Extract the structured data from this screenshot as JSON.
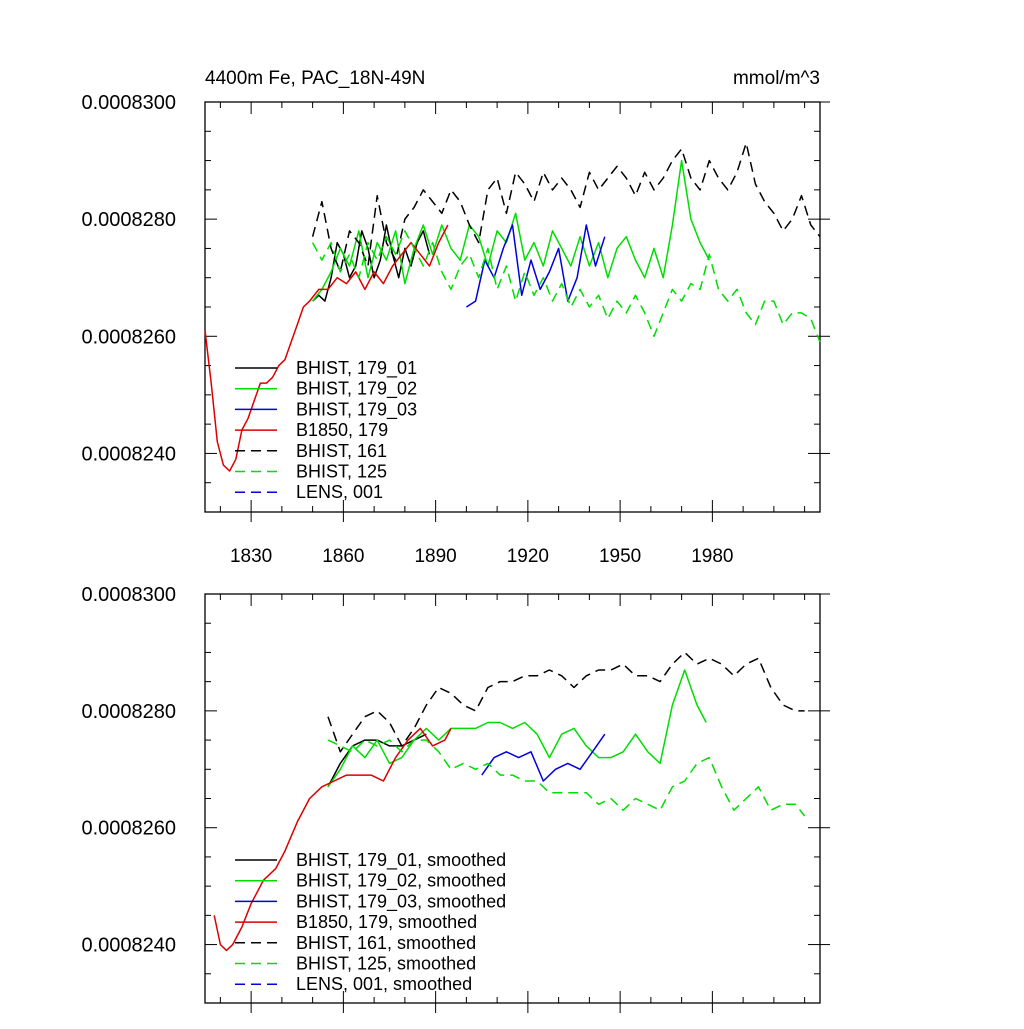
{
  "chart_data": [
    {
      "type": "line",
      "title": "4400m Fe, PAC_18N-49N",
      "units": "mmol/m^3",
      "xlabel": "",
      "ylabel": "",
      "xlim": [
        1815,
        2015
      ],
      "ylim": [
        0.000823,
        0.00083
      ],
      "x_ticks": [
        1830,
        1860,
        1890,
        1920,
        1950,
        1980
      ],
      "y_ticks": [
        "0.0008240",
        "0.0008260",
        "0.0008280",
        "0.0008300"
      ],
      "legend_position": "bottom-left",
      "series": [
        {
          "name": "BHIST, 179_01",
          "color": "#000000",
          "dash": "solid",
          "x": [
            1850,
            1852,
            1854,
            1856,
            1858,
            1860,
            1862,
            1864,
            1866,
            1868,
            1870,
            1872,
            1874,
            1876,
            1878,
            1880,
            1882,
            1884,
            1886,
            1888
          ],
          "y": [
            0.0008266,
            0.0008267,
            0.0008266,
            0.000827,
            0.0008276,
            0.0008274,
            0.000827,
            0.0008272,
            0.0008278,
            0.0008275,
            0.000827,
            0.0008273,
            0.0008279,
            0.0008274,
            0.000827,
            0.0008275,
            0.0008272,
            0.0008276,
            0.0008278,
            0.0008274
          ]
        },
        {
          "name": "BHIST, 179_02",
          "color": "#00dd00",
          "dash": "solid",
          "x": [
            1850,
            1853,
            1856,
            1859,
            1862,
            1865,
            1868,
            1871,
            1874,
            1877,
            1880,
            1883,
            1886,
            1889,
            1892,
            1895,
            1898,
            1901,
            1904,
            1907,
            1910,
            1913,
            1916,
            1919,
            1922,
            1925,
            1928,
            1931,
            1934,
            1937,
            1940,
            1943,
            1946,
            1949,
            1952,
            1955,
            1958,
            1961,
            1964,
            1967,
            1970,
            1973,
            1976,
            1979
          ],
          "y": [
            0.0008266,
            0.0008268,
            0.0008271,
            0.0008275,
            0.0008272,
            0.0008278,
            0.000827,
            0.0008276,
            0.0008273,
            0.0008278,
            0.0008269,
            0.0008275,
            0.0008279,
            0.0008274,
            0.0008279,
            0.0008275,
            0.0008273,
            0.0008279,
            0.0008277,
            0.0008272,
            0.0008278,
            0.0008276,
            0.0008281,
            0.0008273,
            0.0008276,
            0.0008272,
            0.0008278,
            0.0008275,
            0.0008272,
            0.0008277,
            0.0008272,
            0.0008276,
            0.000827,
            0.0008275,
            0.0008277,
            0.0008273,
            0.000827,
            0.0008275,
            0.000827,
            0.0008279,
            0.000829,
            0.000828,
            0.0008276,
            0.0008273
          ]
        },
        {
          "name": "BHIST, 179_03",
          "color": "#0000dd",
          "dash": "solid",
          "x": [
            1900,
            1903,
            1906,
            1909,
            1912,
            1915,
            1918,
            1921,
            1924,
            1927,
            1930,
            1933,
            1936,
            1939,
            1942,
            1945
          ],
          "y": [
            0.0008265,
            0.0008266,
            0.0008273,
            0.000827,
            0.0008275,
            0.0008279,
            0.0008267,
            0.0008273,
            0.0008268,
            0.0008271,
            0.0008275,
            0.0008266,
            0.000827,
            0.0008279,
            0.0008272,
            0.0008277
          ]
        },
        {
          "name": "B1850, 179",
          "color": "#dd0000",
          "dash": "solid",
          "x": [
            1815,
            1817,
            1819,
            1821,
            1823,
            1825,
            1827,
            1829,
            1831,
            1833,
            1835,
            1837,
            1839,
            1841,
            1843,
            1845,
            1847,
            1849,
            1852,
            1855,
            1858,
            1861,
            1864,
            1867,
            1870,
            1873,
            1876,
            1879,
            1882,
            1885,
            1888,
            1891,
            1894
          ],
          "y": [
            0.0008261,
            0.0008252,
            0.0008242,
            0.0008238,
            0.0008237,
            0.0008239,
            0.0008244,
            0.0008246,
            0.0008249,
            0.0008252,
            0.0008252,
            0.0008253,
            0.0008255,
            0.0008256,
            0.0008259,
            0.0008262,
            0.0008265,
            0.0008266,
            0.0008268,
            0.0008268,
            0.000827,
            0.0008269,
            0.0008271,
            0.0008268,
            0.0008271,
            0.0008269,
            0.0008272,
            0.0008274,
            0.0008276,
            0.0008274,
            0.0008272,
            0.0008276,
            0.0008279
          ]
        },
        {
          "name": "BHIST, 161",
          "color": "#000000",
          "dash": "dashed",
          "x": [
            1850,
            1853,
            1856,
            1859,
            1862,
            1865,
            1868,
            1871,
            1874,
            1877,
            1880,
            1883,
            1886,
            1889,
            1892,
            1895,
            1898,
            1901,
            1904,
            1907,
            1910,
            1913,
            1916,
            1919,
            1922,
            1925,
            1928,
            1931,
            1934,
            1937,
            1940,
            1943,
            1946,
            1949,
            1952,
            1955,
            1958,
            1961,
            1964,
            1967,
            1970,
            1973,
            1976,
            1979,
            1982,
            1985,
            1988,
            1991,
            1994,
            1997,
            2000,
            2003,
            2006,
            2009,
            2012,
            2015
          ],
          "y": [
            0.0008277,
            0.0008283,
            0.0008275,
            0.0008271,
            0.0008278,
            0.0008276,
            0.0008272,
            0.0008284,
            0.0008276,
            0.0008273,
            0.000828,
            0.0008282,
            0.0008285,
            0.0008283,
            0.0008281,
            0.0008285,
            0.0008283,
            0.0008279,
            0.0008276,
            0.0008285,
            0.0008287,
            0.0008281,
            0.0008288,
            0.0008286,
            0.0008283,
            0.0008288,
            0.0008285,
            0.0008287,
            0.0008285,
            0.0008282,
            0.0008288,
            0.0008285,
            0.0008287,
            0.0008289,
            0.0008287,
            0.0008284,
            0.0008288,
            0.0008285,
            0.0008287,
            0.000829,
            0.0008292,
            0.0008287,
            0.0008285,
            0.000829,
            0.0008287,
            0.0008285,
            0.0008288,
            0.0008293,
            0.0008286,
            0.0008283,
            0.0008281,
            0.0008278,
            0.000828,
            0.0008284,
            0.0008279,
            0.0008277
          ]
        },
        {
          "name": "BHIST, 125",
          "color": "#00dd00",
          "dash": "dashed",
          "x": [
            1850,
            1853,
            1856,
            1859,
            1862,
            1865,
            1868,
            1871,
            1874,
            1877,
            1880,
            1883,
            1886,
            1889,
            1892,
            1895,
            1898,
            1901,
            1904,
            1907,
            1910,
            1913,
            1916,
            1919,
            1922,
            1925,
            1928,
            1931,
            1934,
            1937,
            1940,
            1943,
            1946,
            1949,
            1952,
            1955,
            1958,
            1961,
            1964,
            1967,
            1970,
            1973,
            1976,
            1979,
            1982,
            1985,
            1988,
            1991,
            1994,
            1997,
            2000,
            2003,
            2006,
            2009,
            2012,
            2015
          ],
          "y": [
            0.0008276,
            0.0008273,
            0.0008276,
            0.0008271,
            0.0008274,
            0.000827,
            0.0008276,
            0.0008273,
            0.0008277,
            0.0008274,
            0.0008278,
            0.0008275,
            0.0008272,
            0.0008276,
            0.0008271,
            0.0008268,
            0.0008272,
            0.0008274,
            0.000827,
            0.0008275,
            0.0008268,
            0.0008272,
            0.0008266,
            0.0008271,
            0.0008267,
            0.000827,
            0.0008266,
            0.0008269,
            0.0008265,
            0.0008268,
            0.0008265,
            0.0008267,
            0.0008263,
            0.0008266,
            0.0008264,
            0.0008267,
            0.0008264,
            0.000826,
            0.0008264,
            0.0008268,
            0.0008266,
            0.0008269,
            0.0008268,
            0.0008274,
            0.0008268,
            0.0008266,
            0.0008268,
            0.0008264,
            0.0008262,
            0.0008266,
            0.0008266,
            0.0008262,
            0.0008264,
            0.0008264,
            0.0008263,
            0.0008259
          ]
        },
        {
          "name": "LENS, 001",
          "color": "#0000dd",
          "dash": "dashed",
          "x": [],
          "y": []
        }
      ]
    },
    {
      "type": "line",
      "title": "",
      "units": "",
      "xlabel": "",
      "ylabel": "",
      "xlim": [
        1815,
        2015
      ],
      "ylim": [
        0.000823,
        0.00083
      ],
      "x_ticks": [
        1830,
        1860,
        1890,
        1920,
        1950,
        1980
      ],
      "y_ticks": [
        "0.0008240",
        "0.0008260",
        "0.0008280",
        "0.0008300"
      ],
      "legend_position": "bottom-left",
      "series": [
        {
          "name": "BHIST, 179_01, smoothed",
          "color": "#000000",
          "dash": "solid",
          "x": [
            1855,
            1859,
            1863,
            1867,
            1871,
            1875,
            1879,
            1883,
            1887
          ],
          "y": [
            0.0008267,
            0.0008271,
            0.0008274,
            0.0008275,
            0.0008275,
            0.0008274,
            0.0008274,
            0.0008275,
            0.0008276
          ]
        },
        {
          "name": "BHIST, 179_02, smoothed",
          "color": "#00dd00",
          "dash": "solid",
          "x": [
            1855,
            1859,
            1863,
            1867,
            1871,
            1875,
            1879,
            1883,
            1887,
            1891,
            1895,
            1899,
            1903,
            1907,
            1911,
            1915,
            1919,
            1923,
            1927,
            1931,
            1935,
            1939,
            1943,
            1947,
            1951,
            1955,
            1959,
            1963,
            1967,
            1971,
            1975,
            1978
          ],
          "y": [
            0.0008267,
            0.000827,
            0.0008274,
            0.0008272,
            0.0008275,
            0.0008271,
            0.0008272,
            0.0008275,
            0.0008277,
            0.0008275,
            0.0008277,
            0.0008277,
            0.0008277,
            0.0008278,
            0.0008278,
            0.0008277,
            0.0008278,
            0.0008276,
            0.0008272,
            0.0008276,
            0.0008277,
            0.0008274,
            0.0008272,
            0.0008272,
            0.0008273,
            0.0008276,
            0.0008273,
            0.0008271,
            0.0008281,
            0.0008287,
            0.0008281,
            0.0008278
          ]
        },
        {
          "name": "BHIST, 179_03, smoothed",
          "color": "#0000dd",
          "dash": "solid",
          "x": [
            1905,
            1909,
            1913,
            1917,
            1921,
            1925,
            1929,
            1933,
            1937,
            1941,
            1945
          ],
          "y": [
            0.0008269,
            0.0008272,
            0.0008273,
            0.0008272,
            0.0008273,
            0.0008268,
            0.000827,
            0.0008271,
            0.000827,
            0.0008273,
            0.0008276
          ]
        },
        {
          "name": "B1850, 179, smoothed",
          "color": "#dd0000",
          "dash": "solid",
          "x": [
            1818,
            1820,
            1822,
            1824,
            1827,
            1830,
            1834,
            1838,
            1841,
            1845,
            1849,
            1853,
            1857,
            1861,
            1865,
            1869,
            1873,
            1877,
            1881,
            1885,
            1889,
            1893,
            1895
          ],
          "y": [
            0.0008245,
            0.000824,
            0.0008239,
            0.000824,
            0.0008243,
            0.0008247,
            0.0008251,
            0.0008253,
            0.0008256,
            0.0008261,
            0.0008265,
            0.0008267,
            0.0008268,
            0.0008269,
            0.0008269,
            0.0008269,
            0.0008268,
            0.0008272,
            0.0008275,
            0.0008277,
            0.0008274,
            0.0008275,
            0.0008277
          ]
        },
        {
          "name": "BHIST, 161, smoothed",
          "color": "#000000",
          "dash": "dashed",
          "x": [
            1855,
            1859,
            1863,
            1867,
            1871,
            1875,
            1879,
            1883,
            1887,
            1891,
            1895,
            1899,
            1903,
            1907,
            1911,
            1915,
            1919,
            1923,
            1927,
            1931,
            1935,
            1939,
            1943,
            1947,
            1951,
            1955,
            1959,
            1963,
            1967,
            1971,
            1975,
            1979,
            1983,
            1987,
            1991,
            1995,
            1999,
            2003,
            2007,
            2010
          ],
          "y": [
            0.0008279,
            0.0008273,
            0.0008276,
            0.0008279,
            0.000828,
            0.0008278,
            0.0008274,
            0.0008277,
            0.0008281,
            0.0008284,
            0.0008283,
            0.0008281,
            0.000828,
            0.0008284,
            0.0008285,
            0.0008285,
            0.0008286,
            0.0008286,
            0.0008287,
            0.0008286,
            0.0008284,
            0.0008286,
            0.0008287,
            0.0008287,
            0.0008288,
            0.0008286,
            0.0008286,
            0.0008285,
            0.0008288,
            0.000829,
            0.0008288,
            0.0008289,
            0.0008288,
            0.0008286,
            0.0008288,
            0.0008289,
            0.0008284,
            0.0008281,
            0.000828,
            0.000828
          ]
        },
        {
          "name": "BHIST, 125, smoothed",
          "color": "#00dd00",
          "dash": "dashed",
          "x": [
            1855,
            1859,
            1863,
            1867,
            1871,
            1875,
            1879,
            1883,
            1887,
            1891,
            1895,
            1899,
            1903,
            1907,
            1911,
            1915,
            1919,
            1923,
            1927,
            1931,
            1935,
            1939,
            1943,
            1947,
            1951,
            1955,
            1959,
            1963,
            1967,
            1971,
            1975,
            1979,
            1983,
            1987,
            1991,
            1995,
            1999,
            2003,
            2007,
            2010
          ],
          "y": [
            0.0008275,
            0.0008274,
            0.0008273,
            0.0008275,
            0.0008274,
            0.0008275,
            0.0008273,
            0.0008275,
            0.0008275,
            0.0008273,
            0.000827,
            0.0008271,
            0.000827,
            0.0008271,
            0.0008269,
            0.0008269,
            0.0008268,
            0.0008268,
            0.0008266,
            0.0008266,
            0.0008266,
            0.0008266,
            0.0008264,
            0.0008265,
            0.0008263,
            0.0008265,
            0.0008264,
            0.0008263,
            0.0008267,
            0.0008268,
            0.0008271,
            0.0008272,
            0.0008267,
            0.0008263,
            0.0008265,
            0.0008267,
            0.0008263,
            0.0008264,
            0.0008264,
            0.0008262
          ]
        },
        {
          "name": "LENS, 001, smoothed",
          "color": "#0000dd",
          "dash": "dashed",
          "x": [],
          "y": []
        }
      ]
    }
  ]
}
